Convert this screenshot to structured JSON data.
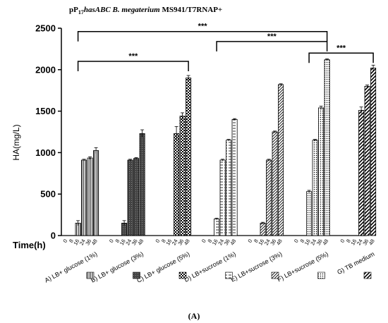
{
  "chart_data": {
    "type": "bar",
    "title": "pP17hasABC B. megaterium MS941/T7RNAP+",
    "title_parts": [
      "pP",
      "17",
      "hasABC B. megaterium",
      " MS941/T7RNAP+"
    ],
    "ylabel": "HA(mg/L)",
    "xlabel": "Time(h)",
    "ylim": [
      0,
      2500
    ],
    "yticks": [
      0,
      500,
      1000,
      1500,
      2000,
      2500
    ],
    "time_labels": [
      "0",
      "8",
      "16",
      "24",
      "36",
      "48"
    ],
    "panel_label": "(A)",
    "groups": [
      {
        "name": "A) LB+ glucose (1%)",
        "pattern": "vlines",
        "color": "#000000",
        "values": [
          0,
          0,
          150,
          910,
          935,
          1025
        ],
        "errors": [
          0,
          0,
          30,
          10,
          15,
          35
        ]
      },
      {
        "name": "B) LB+ glucose (3%)",
        "pattern": "dark",
        "color": "#000000",
        "values": [
          0,
          0,
          150,
          910,
          930,
          1230
        ],
        "errors": [
          0,
          0,
          30,
          10,
          10,
          45
        ]
      },
      {
        "name": "C) LB+ glucose (5%)",
        "pattern": "check",
        "color": "#000000",
        "values": [
          0,
          0,
          0,
          1230,
          1440,
          1900
        ],
        "errors": [
          0,
          0,
          0,
          85,
          40,
          30
        ]
      },
      {
        "name": "D) LB+sucrose (1%)",
        "pattern": "hdash",
        "color": "#000000",
        "values": [
          0,
          0,
          200,
          910,
          1150,
          1400
        ],
        "errors": [
          0,
          0,
          10,
          10,
          10,
          10
        ]
      },
      {
        "name": "E) LB+sucrose (3%)",
        "pattern": "diag",
        "color": "#000000",
        "values": [
          0,
          0,
          150,
          910,
          1250,
          1820
        ],
        "errors": [
          0,
          0,
          10,
          10,
          10,
          10
        ]
      },
      {
        "name": "F) LB+sucrose (5%)",
        "pattern": "dots",
        "color": "#000000",
        "values": [
          0,
          0,
          530,
          1150,
          1540,
          2120
        ],
        "errors": [
          0,
          0,
          15,
          10,
          20,
          10
        ]
      },
      {
        "name": "G) TB medium",
        "pattern": "diagbold",
        "color": "#888888",
        "values": [
          0,
          0,
          0,
          1510,
          1800,
          2020
        ],
        "errors": [
          0,
          0,
          0,
          40,
          15,
          35
        ]
      }
    ],
    "significance": [
      {
        "from_group": 0,
        "to_group": 5,
        "y": 2460,
        "label": "***"
      },
      {
        "from_group": 0,
        "to_group": 2,
        "y": 2100,
        "label": "***"
      },
      {
        "from_group": 3,
        "to_group": 5,
        "y": 2340,
        "label": "***"
      },
      {
        "from_group": 5,
        "to_group": 6,
        "y": 2200,
        "label": "***"
      }
    ]
  }
}
